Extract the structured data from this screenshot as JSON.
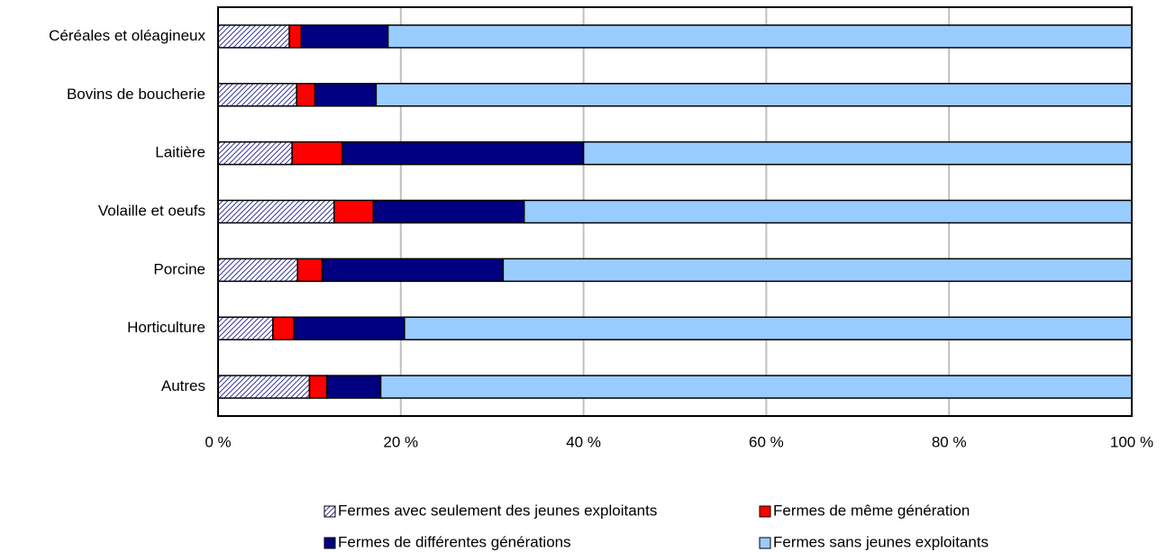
{
  "chart_data": {
    "type": "stacked_barh",
    "categories": [
      "Céréales et oléagineux",
      "Bovins de boucherie",
      "Laitière",
      "Volaille et oeufs",
      "Porcine",
      "Horticulture",
      "Autres"
    ],
    "series": [
      {
        "name": "Fermes avec seulement des jeunes exploitants",
        "color": "#333399",
        "hatch": true,
        "values": [
          7.8,
          8.6,
          8.1,
          12.7,
          8.7,
          6.0,
          10.0
        ]
      },
      {
        "name": "Fermes de même génération",
        "color": "#ff0000",
        "values": [
          1.3,
          2.0,
          5.5,
          4.3,
          2.7,
          2.3,
          1.9
        ]
      },
      {
        "name": "Fermes de différentes générations",
        "color": "#000080",
        "values": [
          9.5,
          6.7,
          26.4,
          16.5,
          19.8,
          12.1,
          5.9
        ]
      },
      {
        "name": "Fermes sans jeunes exploitants",
        "color": "#99ccff",
        "values": [
          81.4,
          82.7,
          60.0,
          66.5,
          68.8,
          79.6,
          82.2
        ]
      }
    ],
    "xlim": [
      0,
      100
    ],
    "xticks": [
      {
        "value": 0,
        "label": "0 %"
      },
      {
        "value": 20,
        "label": "20 %"
      },
      {
        "value": 40,
        "label": "40 %"
      },
      {
        "value": 60,
        "label": "60 %"
      },
      {
        "value": 80,
        "label": "80 %"
      },
      {
        "value": 100,
        "label": "100 %"
      }
    ],
    "grid": true,
    "legend": "bottom"
  }
}
